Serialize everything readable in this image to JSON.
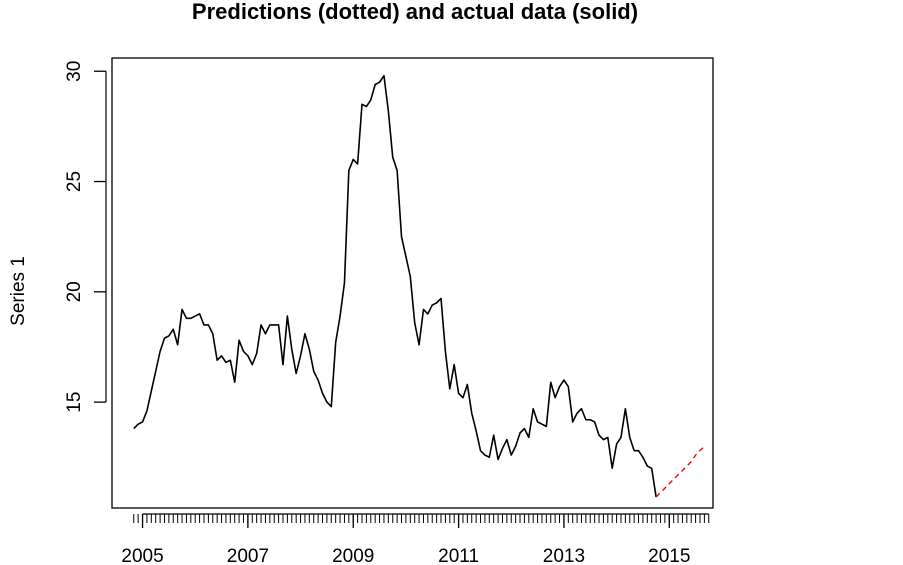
{
  "chart_data": {
    "type": "line",
    "title": "Predictions (dotted) and actual data (solid)",
    "xlabel": "",
    "ylabel": "Series 1",
    "xlim": [
      2004.42,
      2015.83
    ],
    "ylim": [
      10.2,
      30.6
    ],
    "x_ticks": [
      {
        "value": 2005,
        "label": "2005"
      },
      {
        "value": 2007,
        "label": "2007"
      },
      {
        "value": 2009,
        "label": "2009"
      },
      {
        "value": 2011,
        "label": "2011"
      },
      {
        "value": 2013,
        "label": "2013"
      },
      {
        "value": 2015,
        "label": "2015"
      }
    ],
    "y_ticks": [
      {
        "value": 15,
        "label": "15"
      },
      {
        "value": 20,
        "label": "20"
      },
      {
        "value": 25,
        "label": "25"
      },
      {
        "value": 30,
        "label": "30"
      }
    ],
    "minor_x_ticks": {
      "start": 2004.833,
      "end": 2015.75,
      "step": 0.0833333
    },
    "grid": false,
    "legend": "none",
    "series": [
      {
        "style": "solid",
        "color": "#000000",
        "x_start": 2004.833,
        "x_step": 0.0833333,
        "values": [
          13.8,
          14.0,
          14.1,
          14.6,
          15.5,
          16.4,
          17.3,
          17.9,
          18.0,
          18.3,
          17.6,
          19.2,
          18.8,
          18.8,
          18.9,
          19.0,
          18.5,
          18.5,
          18.1,
          16.9,
          17.1,
          16.8,
          16.9,
          15.9,
          17.8,
          17.3,
          17.1,
          16.7,
          17.2,
          18.5,
          18.1,
          18.5,
          18.5,
          18.5,
          16.7,
          18.9,
          17.4,
          16.3,
          17.1,
          18.1,
          17.4,
          16.4,
          16.0,
          15.4,
          15.0,
          14.8,
          17.7,
          18.9,
          20.4,
          25.5,
          26.0,
          25.8,
          28.5,
          28.4,
          28.7,
          29.4,
          29.5,
          29.8,
          28.2,
          26.1,
          25.5,
          22.5,
          21.6,
          20.7,
          18.6,
          17.6,
          19.2,
          19.0,
          19.4,
          19.5,
          19.7,
          17.3,
          15.6,
          16.7,
          15.4,
          15.2,
          15.8,
          14.5,
          13.7,
          12.8,
          12.6,
          12.5,
          13.5,
          12.4,
          12.9,
          13.3,
          12.6,
          13.0,
          13.6,
          13.8,
          13.4,
          14.7,
          14.1,
          14.0,
          13.9,
          15.9,
          15.2,
          15.7,
          16.0,
          15.7,
          14.1,
          14.5,
          14.7,
          14.2,
          14.2,
          14.1,
          13.5,
          13.3,
          13.4,
          12.0,
          13.1,
          13.4,
          14.7,
          13.4,
          12.8,
          12.8,
          12.5,
          12.1,
          12.0,
          10.7
        ]
      },
      {
        "style": "dotted",
        "color": "#ff0000",
        "x_start": 2014.75,
        "x_step": 0.0833333,
        "values": [
          10.7,
          10.9,
          11.1,
          11.3,
          11.5,
          11.7,
          11.9,
          12.1,
          12.3,
          12.6,
          12.8,
          13.0
        ]
      }
    ]
  }
}
